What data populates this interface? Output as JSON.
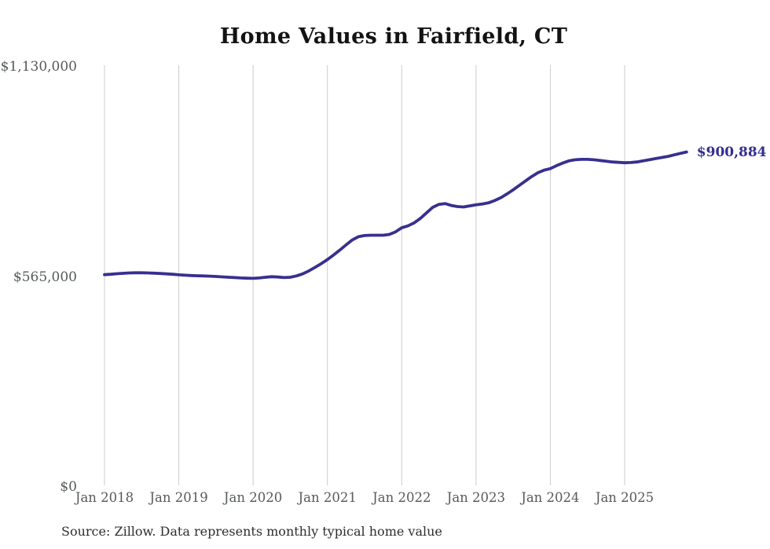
{
  "title": "Home Values in Fairfield, CT",
  "source_note": "Source: Zillow. Data represents monthly typical home value",
  "colors": {
    "line": "#37308f",
    "end_label": "#342e90",
    "grid": "#cccccc",
    "tick_text": "#565a5b",
    "title_text": "#131313",
    "source_text": "#2e2e2e",
    "background": "#ffffff"
  },
  "chart_data": {
    "type": "line",
    "title": "Home Values in Fairfield, CT",
    "xlabel": "",
    "ylabel": "",
    "ylim": [
      0,
      1130000
    ],
    "grid": "vertical-only",
    "legend": "none",
    "y_ticks": [
      {
        "label": "$0",
        "value": 0
      },
      {
        "label": "$565,000",
        "value": 565000
      },
      {
        "label": "$1,130,000",
        "value": 1130000
      }
    ],
    "x_ticks": [
      {
        "label": "Jan 2018",
        "month_index": 0
      },
      {
        "label": "Jan 2019",
        "month_index": 12
      },
      {
        "label": "Jan 2020",
        "month_index": 24
      },
      {
        "label": "Jan 2021",
        "month_index": 36
      },
      {
        "label": "Jan 2022",
        "month_index": 48
      },
      {
        "label": "Jan 2023",
        "month_index": 60
      },
      {
        "label": "Jan 2024",
        "month_index": 72
      },
      {
        "label": "Jan 2025",
        "month_index": 84
      }
    ],
    "end_value_label": "$900,884",
    "end_value": 900884,
    "series": [
      {
        "name": "Monthly typical home value",
        "start_month": "2018-01",
        "end_month": "2025-11",
        "values": [
          571000,
          572000,
          573500,
          574500,
          575500,
          576000,
          576000,
          575500,
          575000,
          574000,
          573000,
          572000,
          570500,
          569500,
          568500,
          568000,
          567500,
          567000,
          566000,
          565000,
          564000,
          563000,
          562000,
          561500,
          561000,
          562000,
          564000,
          565500,
          564500,
          563000,
          564000,
          567500,
          573000,
          581000,
          590500,
          600500,
          611500,
          624000,
          637000,
          651000,
          664000,
          673000,
          676000,
          677000,
          677000,
          677000,
          679000,
          686000,
          697000,
          702000,
          710000,
          722000,
          737000,
          752000,
          760000,
          762000,
          757000,
          754000,
          753000,
          756000,
          759000,
          761000,
          764000,
          770000,
          778000,
          788000,
          799000,
          811000,
          823000,
          835000,
          845000,
          852000,
          856000,
          864000,
          871000,
          877000,
          880000,
          881000,
          881000,
          880000,
          878000,
          876000,
          874000,
          873000,
          872000,
          872500,
          874000,
          877000,
          880000,
          883000,
          886000,
          889000,
          893000,
          897000,
          900884
        ]
      }
    ]
  }
}
